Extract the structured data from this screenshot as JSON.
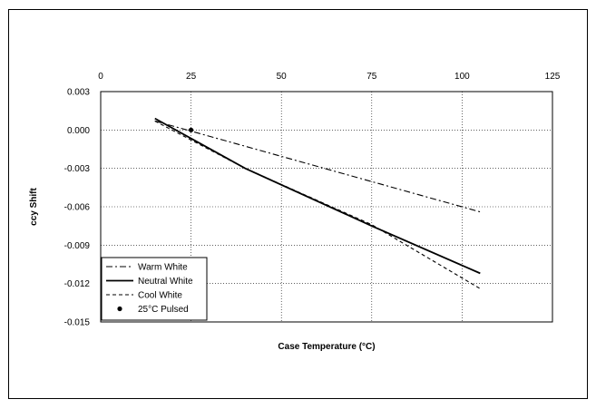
{
  "chart_data": {
    "type": "line",
    "xlabel": "Case Temperature (°C)",
    "ylabel": "ccy Shift",
    "xlim": [
      0,
      125
    ],
    "ylim": [
      -0.015,
      0.003
    ],
    "x_ticks": [
      "0",
      "25",
      "50",
      "75",
      "100",
      "125"
    ],
    "y_ticks": [
      "0.003",
      "0.000",
      "-0.003",
      "-0.006",
      "-0.009",
      "-0.012",
      "-0.015"
    ],
    "x_tick_values": [
      0,
      25,
      50,
      75,
      100,
      125
    ],
    "y_tick_values": [
      0.003,
      0.0,
      -0.003,
      -0.006,
      -0.009,
      -0.012,
      -0.015
    ],
    "x_axis_position": "top",
    "grid": true,
    "grid_style": "dotted",
    "legend_position": "bottom-left",
    "series": [
      {
        "name": "Warm White",
        "style": "dash-dot",
        "color": "#000000",
        "x": [
          15,
          105
        ],
        "y": [
          0.0007,
          -0.0064
        ]
      },
      {
        "name": "Neutral White",
        "style": "solid",
        "color": "#000000",
        "x": [
          15,
          40,
          75,
          105
        ],
        "y": [
          0.0009,
          -0.003,
          -0.0075,
          -0.0112
        ]
      },
      {
        "name": "Cool White",
        "style": "dashed",
        "color": "#000000",
        "x": [
          15,
          40,
          75,
          105
        ],
        "y": [
          0.0007,
          -0.003,
          -0.0074,
          -0.0124
        ]
      },
      {
        "name": "25°C Pulsed",
        "style": "marker",
        "color": "#000000",
        "x": [
          25
        ],
        "y": [
          0.0
        ]
      }
    ]
  }
}
